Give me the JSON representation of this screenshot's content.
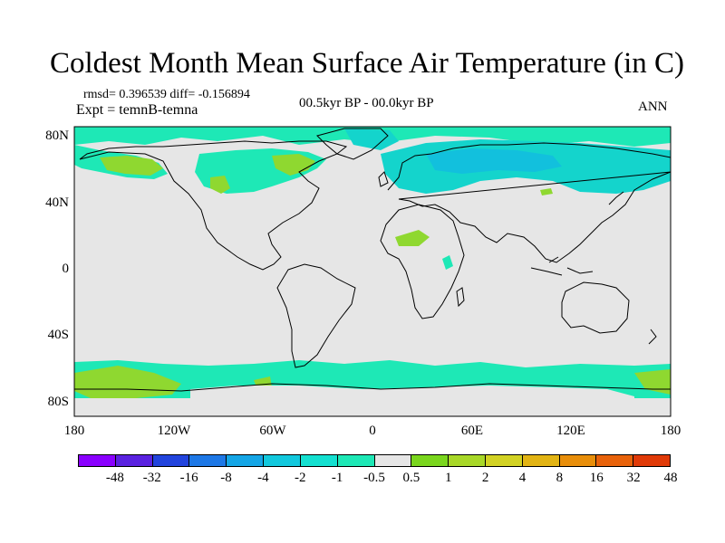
{
  "title": "Coldest Month Mean Surface Air Temperature (in C)",
  "stats": "rmsd= 0.396539 diff= -0.156894",
  "experiment": "Expt = temnB-temna",
  "period": "00.5kyr BP - 00.0kyr BP",
  "season": "ANN",
  "lat_ticks": [
    "80N",
    "40N",
    "0",
    "40S",
    "80S"
  ],
  "lon_ticks": [
    "180",
    "120W",
    "60W",
    "0",
    "60E",
    "120E",
    "180"
  ],
  "colorbar": {
    "colors": [
      "#8a00ff",
      "#5a22e0",
      "#2244dd",
      "#1e78e6",
      "#15a6e6",
      "#12c8dd",
      "#14e0d0",
      "#1ee8b6",
      "#e6e6e6",
      "#7ad61e",
      "#a8d828",
      "#d2d224",
      "#e2b414",
      "#e88e0a",
      "#e8620a",
      "#e03a08"
    ],
    "labels": [
      "-48",
      "-32",
      "-16",
      "-8",
      "-4",
      "-2",
      "-1",
      "-0.5",
      "0.5",
      "1",
      "2",
      "4",
      "8",
      "16",
      "32",
      "48"
    ]
  },
  "map_colors": {
    "background": "#e6e6e6",
    "neg_small": "#1ee8b6",
    "neg_mid": "#14d4cc",
    "neg_large": "#12c0dd",
    "pos_small": "#8fd830",
    "pos_mid": "#a8d828",
    "coast": "#000000"
  }
}
